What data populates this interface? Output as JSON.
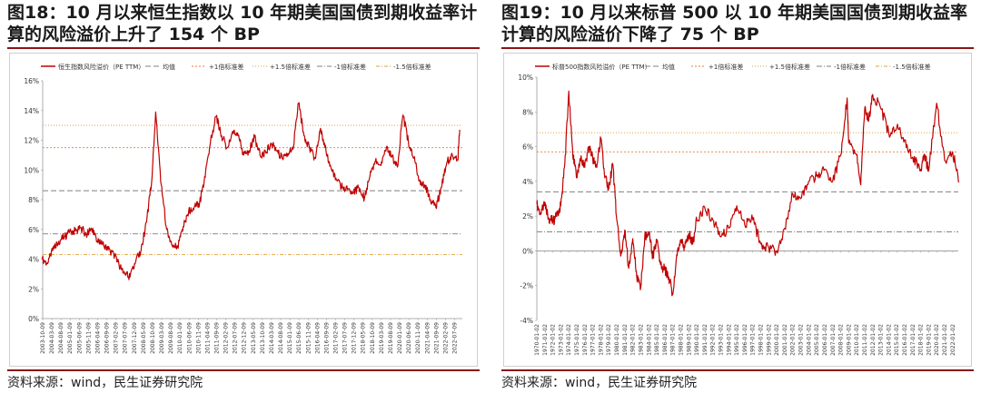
{
  "charts": [
    {
      "figure_title": "图18：10 月以来恒生指数以 10 年期美国国债到期收益率计算的风险溢价上升了 154 个 BP",
      "source": "资料来源：wind，民生证券研究院"
    },
    {
      "figure_title": "图19：10 月以来标普 500 以 10 年期美国国债到期收益率计算的风险溢价下降了 75 个 BP",
      "source": "资料来源：wind，民生证券研究院"
    }
  ],
  "colors": {
    "series": "#c00000",
    "mean": "#808080",
    "plus1": "#e87e3a",
    "plus15": "#e4a23c",
    "minus1": "#7f7f7f",
    "minus15": "#e4a23c",
    "rule": "#8a1414"
  },
  "chart_data": [
    {
      "type": "line",
      "legend": [
        "恒生指数风险溢价（PE TTM）",
        "均值",
        "+1倍标准差",
        "+1.5倍标准差",
        "-1倍标准差",
        "-1.5倍标准差"
      ],
      "legend_position": "top",
      "yticks": [
        "16%",
        "14%",
        "12%",
        "10%",
        "8%",
        "6%",
        "4%",
        "2%",
        "0%"
      ],
      "ylim": [
        0,
        16
      ],
      "xticks": [
        "2003-10-09",
        "2004-03-09",
        "2004-08-09",
        "2005-01-09",
        "2005-06-09",
        "2005-11-09",
        "2006-04-09",
        "2006-09-09",
        "2007-02-09",
        "2007-07-09",
        "2007-12-09",
        "2008-05-09",
        "2008-10-09",
        "2009-03-09",
        "2009-08-09",
        "2010-01-09",
        "2010-06-09",
        "2010-11-09",
        "2011-04-09",
        "2011-09-09",
        "2012-02-09",
        "2012-07-09",
        "2012-12-09",
        "2013-05-09",
        "2013-10-09",
        "2014-03-09",
        "2014-08-09",
        "2015-01-09",
        "2015-06-09",
        "2015-11-09",
        "2016-04-09",
        "2016-09-09",
        "2017-02-09",
        "2017-07-09",
        "2017-12-09",
        "2018-05-09",
        "2018-10-09",
        "2019-03-09",
        "2019-08-09",
        "2020-01-09",
        "2020-06-09",
        "2020-11-09",
        "2021-04-09",
        "2021-09-09",
        "2022-02-09",
        "2022-07-09"
      ],
      "reference_lines": {
        "mean": 8.6,
        "plus1": 11.5,
        "plus15": 13.0,
        "minus1": 5.7,
        "minus15": 4.3
      },
      "series": [
        {
          "name": "恒生指数风险溢价（PE TTM）",
          "x": [
            "2003-10",
            "2004-01",
            "2004-04",
            "2004-07",
            "2004-10",
            "2005-01",
            "2005-04",
            "2005-07",
            "2005-10",
            "2006-01",
            "2006-04",
            "2006-07",
            "2006-10",
            "2007-01",
            "2007-04",
            "2007-07",
            "2007-10",
            "2008-01",
            "2008-04",
            "2008-07",
            "2008-10",
            "2008-12",
            "2009-03",
            "2009-06",
            "2009-09",
            "2009-12",
            "2010-03",
            "2010-06",
            "2010-09",
            "2010-12",
            "2011-03",
            "2011-06",
            "2011-09",
            "2011-12",
            "2012-03",
            "2012-06",
            "2012-09",
            "2012-12",
            "2013-03",
            "2013-06",
            "2013-09",
            "2013-12",
            "2014-03",
            "2014-06",
            "2014-09",
            "2014-12",
            "2015-03",
            "2015-06",
            "2015-09",
            "2015-12",
            "2016-03",
            "2016-06",
            "2016-09",
            "2016-12",
            "2017-03",
            "2017-06",
            "2017-09",
            "2017-12",
            "2018-03",
            "2018-06",
            "2018-09",
            "2018-12",
            "2019-03",
            "2019-06",
            "2019-09",
            "2019-12",
            "2020-03",
            "2020-06",
            "2020-09",
            "2020-12",
            "2021-03",
            "2021-06",
            "2021-09",
            "2021-12",
            "2022-03",
            "2022-06",
            "2022-09",
            "2022-10"
          ],
          "values": [
            4.0,
            3.7,
            4.8,
            5.2,
            5.5,
            5.8,
            5.9,
            6.1,
            5.7,
            6.0,
            5.2,
            5.0,
            4.6,
            4.4,
            3.6,
            3.0,
            2.8,
            3.8,
            4.6,
            6.5,
            9.5,
            13.9,
            9.0,
            6.0,
            4.9,
            4.8,
            6.2,
            7.2,
            7.5,
            7.8,
            9.5,
            12.0,
            13.6,
            12.3,
            11.5,
            12.6,
            12.3,
            11.0,
            11.3,
            12.2,
            11.0,
            11.2,
            11.8,
            11.3,
            10.8,
            11.1,
            11.4,
            14.5,
            12.3,
            11.5,
            10.8,
            12.8,
            11.3,
            10.0,
            9.3,
            8.8,
            8.7,
            8.5,
            8.8,
            8.1,
            9.6,
            10.6,
            10.3,
            11.5,
            10.9,
            10.2,
            13.7,
            11.9,
            10.8,
            9.3,
            9.0,
            8.0,
            7.5,
            8.8,
            10.5,
            11.0,
            10.7,
            12.7
          ]
        }
      ]
    },
    {
      "type": "line",
      "legend": [
        "标普500指数风险溢价（PE TTM）",
        "均值",
        "+1倍标准差",
        "+1.5倍标准差",
        "-1倍标准差",
        "-1.5倍标准差"
      ],
      "legend_position": "top",
      "yticks": [
        "10%",
        "8%",
        "6%",
        "4%",
        "2%",
        "0%",
        "-2%",
        "-4%"
      ],
      "ylim": [
        -4,
        10
      ],
      "xticks": [
        "1970-01-02",
        "1971-01-02",
        "1972-01-02",
        "1973-01-02",
        "1974-01-02",
        "1975-01-02",
        "1976-01-02",
        "1977-01-02",
        "1978-01-02",
        "1979-01-02",
        "1980-01-02",
        "1981-01-02",
        "1982-01-02",
        "1983-01-02",
        "1984-01-02",
        "1985-01-02",
        "1986-01-02",
        "1987-01-02",
        "1988-01-02",
        "1989-01-02",
        "1990-01-02",
        "1991-01-02",
        "1992-01-02",
        "1993-01-02",
        "1994-01-02",
        "1995-01-02",
        "1996-01-02",
        "1997-01-02",
        "1998-01-02",
        "1999-01-02",
        "2000-01-02",
        "2001-01-02",
        "2002-01-02",
        "2003-01-02",
        "2004-01-02",
        "2005-01-02",
        "2006-01-02",
        "2007-01-02",
        "2008-01-02",
        "2009-01-02",
        "2010-01-02",
        "2011-01-02",
        "2012-01-02",
        "2013-01-02",
        "2014-01-02",
        "2015-01-02",
        "2016-01-02",
        "2017-01-02",
        "2018-01-02",
        "2019-01-02",
        "2020-01-02",
        "2021-01-02",
        "2022-01-02"
      ],
      "reference_lines": {
        "mean": 3.4,
        "plus1": 5.7,
        "plus15": 6.8,
        "minus1": 1.1,
        "minus15": 0.0
      },
      "series": [
        {
          "name": "标普500指数风险溢价（PE TTM）",
          "x": [
            "1970",
            "1970.5",
            "1971",
            "1971.5",
            "1972",
            "1972.5",
            "1973",
            "1973.5",
            "1974",
            "1974.5",
            "1975",
            "1975.5",
            "1976",
            "1976.5",
            "1977",
            "1977.5",
            "1978",
            "1978.5",
            "1979",
            "1979.5",
            "1980",
            "1980.5",
            "1981",
            "1981.5",
            "1982",
            "1982.5",
            "1983",
            "1983.5",
            "1984",
            "1984.5",
            "1985",
            "1985.5",
            "1986",
            "1986.5",
            "1987",
            "1987.5",
            "1988",
            "1988.5",
            "1989",
            "1989.5",
            "1990",
            "1991",
            "1992",
            "1993",
            "1994",
            "1995",
            "1996",
            "1997",
            "1998",
            "1999",
            "2000",
            "2001",
            "2002",
            "2003",
            "2004",
            "2005",
            "2006",
            "2007",
            "2008",
            "2008.8",
            "2009",
            "2010",
            "2010.5",
            "2011",
            "2011.5",
            "2012",
            "2013",
            "2014",
            "2015",
            "2016",
            "2017",
            "2018",
            "2018.5",
            "2019",
            "2020",
            "2021",
            "2022",
            "2022.8"
          ],
          "values": [
            2.7,
            2.1,
            2.8,
            1.9,
            1.7,
            2.0,
            2.6,
            5.0,
            9.2,
            5.5,
            4.2,
            5.3,
            4.8,
            6.0,
            5.3,
            4.8,
            6.5,
            4.2,
            3.6,
            5.0,
            1.8,
            -0.3,
            1.2,
            -1.0,
            0.7,
            -1.5,
            -2.1,
            0.8,
            1.1,
            -0.3,
            0.5,
            -0.8,
            -1.1,
            -1.5,
            -2.5,
            -0.2,
            0.5,
            0.2,
            1.0,
            0.4,
            1.8,
            2.5,
            1.8,
            0.8,
            1.3,
            2.6,
            1.5,
            1.8,
            0.4,
            0.2,
            0.0,
            1.3,
            3.3,
            3.0,
            4.0,
            4.3,
            4.7,
            4.0,
            5.5,
            8.8,
            6.2,
            5.5,
            3.8,
            8.2,
            7.5,
            9.0,
            8.2,
            6.8,
            7.1,
            6.4,
            5.4,
            4.7,
            5.5,
            4.6,
            8.5,
            5.2,
            5.7,
            4.0
          ]
        }
      ]
    }
  ]
}
